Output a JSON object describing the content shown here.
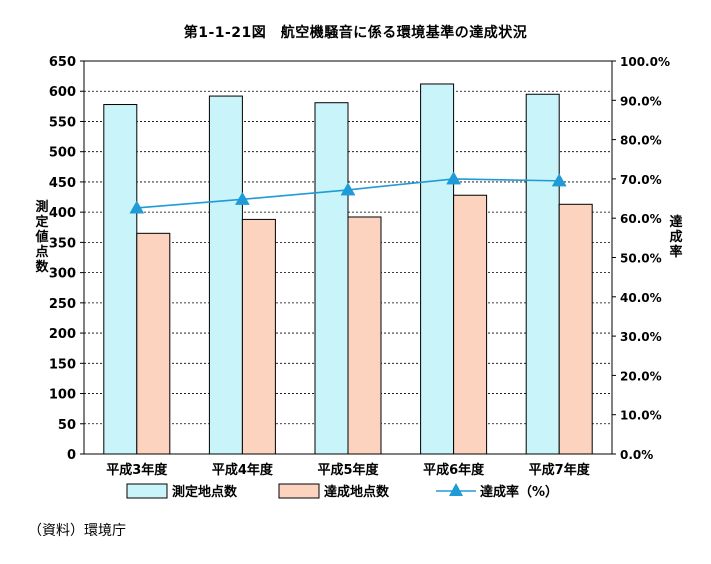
{
  "title": "第1-1-21図　航空機騒音に係る環境基準の達成状況",
  "source_note": "（資料）環境庁",
  "colors": {
    "bar_measured": "#c8f4fa",
    "bar_measured_stroke": "#000000",
    "bar_achieved": "#fbd3bf",
    "bar_achieved_stroke": "#000000",
    "line_rate": "#1f9bd7",
    "grid": "#000000",
    "background": "#ffffff"
  },
  "chart_data": {
    "type": "bar",
    "title": "第1-1-21図　航空機騒音に係る環境基準の達成状況",
    "categories": [
      "平成3年度",
      "平成4年度",
      "平成5年度",
      "平成6年度",
      "平成7年度"
    ],
    "series": [
      {
        "name": "測定地点数",
        "type": "bar",
        "axis": "left",
        "values": [
          578,
          592,
          581,
          612,
          595
        ]
      },
      {
        "name": "達成地点数",
        "type": "bar",
        "axis": "left",
        "values": [
          365,
          388,
          392,
          428,
          413
        ]
      },
      {
        "name": "達成率（%）",
        "type": "line",
        "axis": "right",
        "marker": "triangle",
        "values": [
          62.6,
          64.8,
          67.2,
          70.0,
          69.5
        ]
      }
    ],
    "ylabel": "測定値点数",
    "y2label": "達成率",
    "ylim": [
      0,
      650
    ],
    "y2lim": [
      0,
      100
    ],
    "yticks": [
      0,
      50,
      100,
      150,
      200,
      250,
      300,
      350,
      400,
      450,
      500,
      550,
      600,
      650
    ],
    "ytick_labels": [
      "0",
      "50",
      "100",
      "150",
      "200",
      "250",
      "300",
      "350",
      "400",
      "450",
      "500",
      "550",
      "600",
      "650"
    ],
    "y2ticks": [
      0,
      10,
      20,
      30,
      40,
      50,
      60,
      70,
      80,
      90,
      100
    ],
    "y2tick_labels": [
      "0.0%",
      "10.0%",
      "20.0%",
      "30.0%",
      "40.0%",
      "50.0%",
      "60.0%",
      "70.0%",
      "80.0%",
      "90.0%",
      "100.0%"
    ],
    "grid": true,
    "legend": {
      "placement": "bottom",
      "entries": [
        "測定地点数",
        "達成地点数",
        "達成率（%）"
      ]
    }
  }
}
